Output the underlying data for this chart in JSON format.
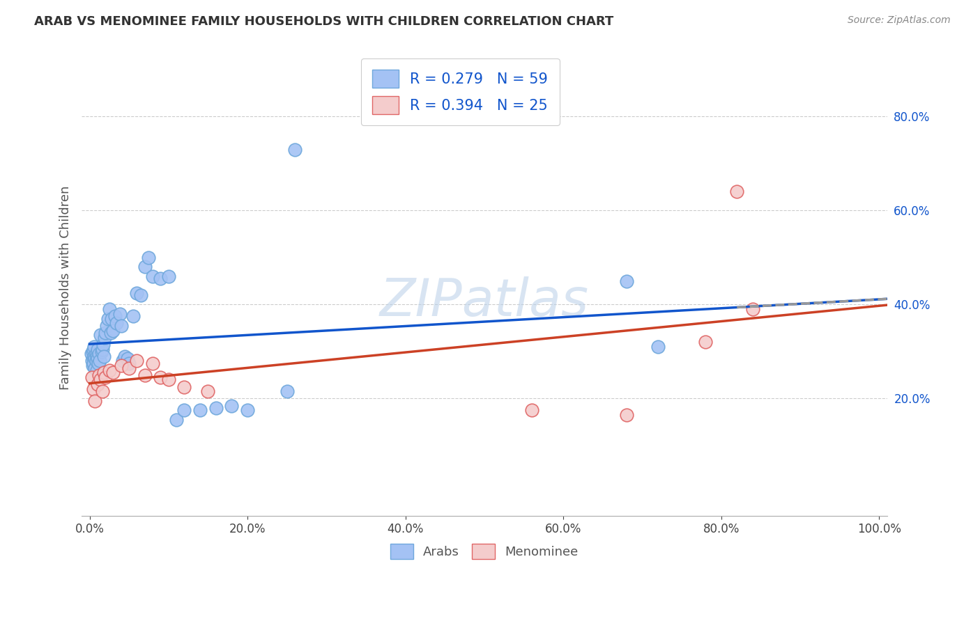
{
  "title": "ARAB VS MENOMINEE FAMILY HOUSEHOLDS WITH CHILDREN CORRELATION CHART",
  "source": "Source: ZipAtlas.com",
  "ylabel": "Family Households with Children",
  "xlim": [
    -0.01,
    1.01
  ],
  "ylim": [
    -0.05,
    0.92
  ],
  "x_ticks": [
    0.0,
    0.2,
    0.4,
    0.6,
    0.8,
    1.0
  ],
  "x_tick_labels": [
    "0.0%",
    "20.0%",
    "40.0%",
    "60.0%",
    "80.0%",
    "100.0%"
  ],
  "y_ticks": [
    0.2,
    0.4,
    0.6,
    0.8
  ],
  "y_tick_labels": [
    "20.0%",
    "40.0%",
    "60.0%",
    "80.0%"
  ],
  "arab_color": "#a4c2f4",
  "arab_edge_color": "#6fa8dc",
  "menominee_color": "#f4cccc",
  "menominee_edge_color": "#e06666",
  "arab_line_color": "#1155cc",
  "menominee_line_color": "#cc4125",
  "trend_ext_color": "#999999",
  "legend_arab_label": "R = 0.279   N = 59",
  "legend_menominee_label": "R = 0.394   N = 25",
  "legend_label_color": "#1155cc",
  "watermark": "ZIPatlas",
  "arab_x": [
    0.002,
    0.003,
    0.004,
    0.004,
    0.005,
    0.005,
    0.005,
    0.006,
    0.006,
    0.007,
    0.007,
    0.008,
    0.008,
    0.009,
    0.009,
    0.01,
    0.01,
    0.011,
    0.012,
    0.013,
    0.014,
    0.015,
    0.016,
    0.017,
    0.018,
    0.019,
    0.02,
    0.022,
    0.023,
    0.025,
    0.027,
    0.028,
    0.03,
    0.032,
    0.034,
    0.038,
    0.04,
    0.042,
    0.045,
    0.048,
    0.05,
    0.055,
    0.06,
    0.065,
    0.07,
    0.075,
    0.08,
    0.09,
    0.1,
    0.11,
    0.12,
    0.14,
    0.16,
    0.18,
    0.2,
    0.25,
    0.26,
    0.68,
    0.72
  ],
  "arab_y": [
    0.295,
    0.28,
    0.3,
    0.27,
    0.285,
    0.305,
    0.275,
    0.29,
    0.31,
    0.285,
    0.265,
    0.295,
    0.28,
    0.29,
    0.26,
    0.305,
    0.285,
    0.275,
    0.295,
    0.28,
    0.335,
    0.3,
    0.305,
    0.315,
    0.29,
    0.33,
    0.34,
    0.355,
    0.37,
    0.39,
    0.34,
    0.37,
    0.345,
    0.375,
    0.36,
    0.38,
    0.355,
    0.28,
    0.29,
    0.285,
    0.275,
    0.375,
    0.425,
    0.42,
    0.48,
    0.5,
    0.46,
    0.455,
    0.46,
    0.155,
    0.175,
    0.175,
    0.18,
    0.185,
    0.175,
    0.215,
    0.73,
    0.45,
    0.31
  ],
  "menominee_x": [
    0.003,
    0.005,
    0.007,
    0.01,
    0.012,
    0.014,
    0.016,
    0.018,
    0.02,
    0.025,
    0.03,
    0.04,
    0.05,
    0.06,
    0.07,
    0.08,
    0.09,
    0.1,
    0.12,
    0.15,
    0.56,
    0.68,
    0.78,
    0.82,
    0.84
  ],
  "menominee_y": [
    0.245,
    0.22,
    0.195,
    0.23,
    0.25,
    0.24,
    0.215,
    0.255,
    0.245,
    0.26,
    0.255,
    0.27,
    0.265,
    0.28,
    0.25,
    0.275,
    0.245,
    0.24,
    0.225,
    0.215,
    0.175,
    0.165,
    0.32,
    0.64,
    0.39
  ],
  "background_color": "#ffffff",
  "grid_color": "#cccccc"
}
